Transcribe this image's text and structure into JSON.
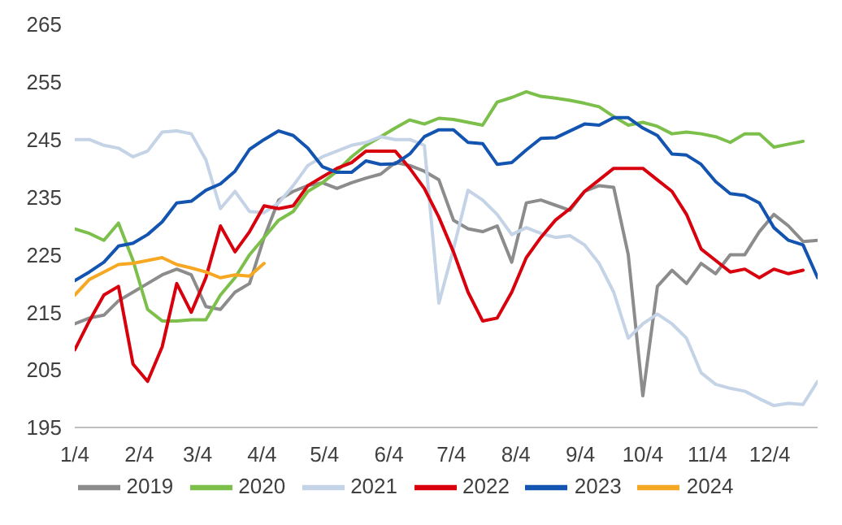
{
  "chart_data": {
    "type": "line",
    "x": [
      "--01-04",
      "--01-11",
      "--01-18",
      "--01-25",
      "--02-01",
      "--02-08",
      "--02-15",
      "--02-22",
      "--03-01",
      "--03-08",
      "--03-15",
      "--03-22",
      "--03-29",
      "--04-05",
      "--04-12",
      "--04-19",
      "--04-26",
      "--05-03",
      "--05-10",
      "--05-17",
      "--05-24",
      "--05-31",
      "--06-07",
      "--06-14",
      "--06-21",
      "--06-28",
      "--07-05",
      "--07-12",
      "--07-19",
      "--07-26",
      "--08-02",
      "--08-09",
      "--08-16",
      "--08-23",
      "--08-30",
      "--09-06",
      "--09-13",
      "--09-20",
      "--09-27",
      "--10-04",
      "--10-11",
      "--10-18",
      "--10-25",
      "--11-01",
      "--11-08",
      "--11-15",
      "--11-22",
      "--11-29",
      "--12-06",
      "--12-13",
      "--12-20",
      "--12-27"
    ],
    "series": [
      {
        "name": "2019",
        "color": "#8c8c8c",
        "values": [
          213,
          214,
          214.5,
          217,
          218.5,
          220,
          221.5,
          222.5,
          221.5,
          216,
          215.5,
          218.5,
          220,
          228,
          234.5,
          236,
          237,
          237.5,
          236.5,
          237.5,
          238.3,
          239,
          241,
          240.5,
          239.5,
          238,
          231,
          229.5,
          229,
          230,
          223.7,
          234,
          234.5,
          233.6,
          232.7,
          236,
          237,
          236.7,
          225,
          200.5,
          219.5,
          222.3,
          220,
          223.5,
          221.7,
          225,
          225,
          229,
          232,
          230,
          227.3,
          227.5
        ]
      },
      {
        "name": "2020",
        "color": "#7cc04b",
        "values": [
          229.5,
          228.7,
          227.5,
          230.5,
          224,
          215.5,
          213.5,
          213.5,
          213.7,
          213.7,
          218,
          221,
          225,
          228,
          231,
          232.5,
          236,
          237.5,
          239.5,
          242,
          244,
          245.5,
          247,
          248.4,
          247.7,
          248.7,
          248.5,
          248,
          247.5,
          251.5,
          252.3,
          253.3,
          252.5,
          252.2,
          251.8,
          251.3,
          250.7,
          249,
          247.5,
          248,
          247.3,
          246,
          246.3,
          246,
          245.5,
          244.5,
          246,
          246,
          243.7,
          244.2,
          244.7,
          null
        ]
      },
      {
        "name": "2021",
        "color": "#c5d3e6",
        "values": [
          245,
          245,
          244,
          243.5,
          242,
          243,
          246.3,
          246.5,
          246,
          241.5,
          233,
          236,
          232.5,
          232.3,
          234,
          237,
          240.5,
          242,
          243,
          244,
          244.5,
          245.5,
          245,
          245,
          244,
          216.6,
          226,
          236.2,
          234.5,
          232,
          228.5,
          229.7,
          228.7,
          228,
          228.3,
          226.7,
          223.5,
          218.5,
          210.5,
          213,
          214.7,
          213,
          210.5,
          204.5,
          202.5,
          201.8,
          201.3,
          200,
          198.8,
          199.2,
          199,
          203
        ]
      },
      {
        "name": "2022",
        "color": "#d9000d",
        "values": [
          208.5,
          213.5,
          218,
          219.5,
          206,
          203,
          209,
          220,
          215,
          221,
          230,
          225.5,
          229,
          233.5,
          233,
          233.5,
          237,
          238.5,
          240,
          241,
          243,
          243,
          243,
          240,
          236.5,
          231.5,
          225.5,
          218.5,
          213.5,
          214,
          218.5,
          224.5,
          228,
          231,
          233,
          236,
          238,
          240,
          240,
          240,
          238,
          236,
          232,
          226,
          224,
          222,
          222.5,
          221,
          222.5,
          221.7,
          222.3,
          null
        ]
      },
      {
        "name": "2023",
        "color": "#1254b0",
        "values": [
          220.5,
          222,
          223.7,
          226.5,
          227,
          228.5,
          230.7,
          234,
          234.3,
          236.2,
          237.3,
          239.5,
          243.3,
          245,
          246.5,
          245.7,
          243.5,
          240.3,
          239.3,
          239.3,
          241.3,
          240.7,
          240.8,
          242.5,
          245.5,
          246.7,
          246.7,
          244.5,
          244.3,
          240.7,
          241,
          243.2,
          245.2,
          245.3,
          246.5,
          247.7,
          247.5,
          248.8,
          248.8,
          247,
          245.7,
          242.5,
          242.3,
          240.7,
          237.7,
          235.6,
          235.3,
          234,
          229.7,
          227.5,
          226.7,
          221
        ]
      },
      {
        "name": "2024",
        "color": "#f7a823",
        "values": [
          218,
          220.7,
          222,
          223.3,
          223.5,
          224,
          224.5,
          223.3,
          222.7,
          222,
          221,
          221.5,
          221.3,
          223.5,
          null,
          null,
          null,
          null,
          null,
          null,
          null,
          null,
          null,
          null,
          null,
          null,
          null,
          null,
          null,
          null,
          null,
          null,
          null,
          null,
          null,
          null,
          null,
          null,
          null,
          null,
          null,
          null,
          null,
          null,
          null,
          null,
          null,
          null,
          null,
          null,
          null,
          null
        ]
      }
    ],
    "xlim": [
      "--01-04",
      "--12-27"
    ],
    "xticks": [
      {
        "value": "--01-04",
        "label": "1/4"
      },
      {
        "value": "--02-04",
        "label": "2/4"
      },
      {
        "value": "--03-04",
        "label": "3/4"
      },
      {
        "value": "--04-04",
        "label": "4/4"
      },
      {
        "value": "--05-04",
        "label": "5/4"
      },
      {
        "value": "--06-04",
        "label": "6/4"
      },
      {
        "value": "--07-04",
        "label": "7/4"
      },
      {
        "value": "--08-04",
        "label": "8/4"
      },
      {
        "value": "--09-04",
        "label": "9/4"
      },
      {
        "value": "--10-04",
        "label": "10/4"
      },
      {
        "value": "--11-04",
        "label": "11/4"
      },
      {
        "value": "--12-04",
        "label": "12/4"
      }
    ],
    "ylim": [
      195,
      265
    ],
    "yticks": [
      195,
      205,
      215,
      225,
      235,
      245,
      255,
      265
    ],
    "legend": "bottom",
    "marker": "none",
    "line_style": "solid"
  }
}
